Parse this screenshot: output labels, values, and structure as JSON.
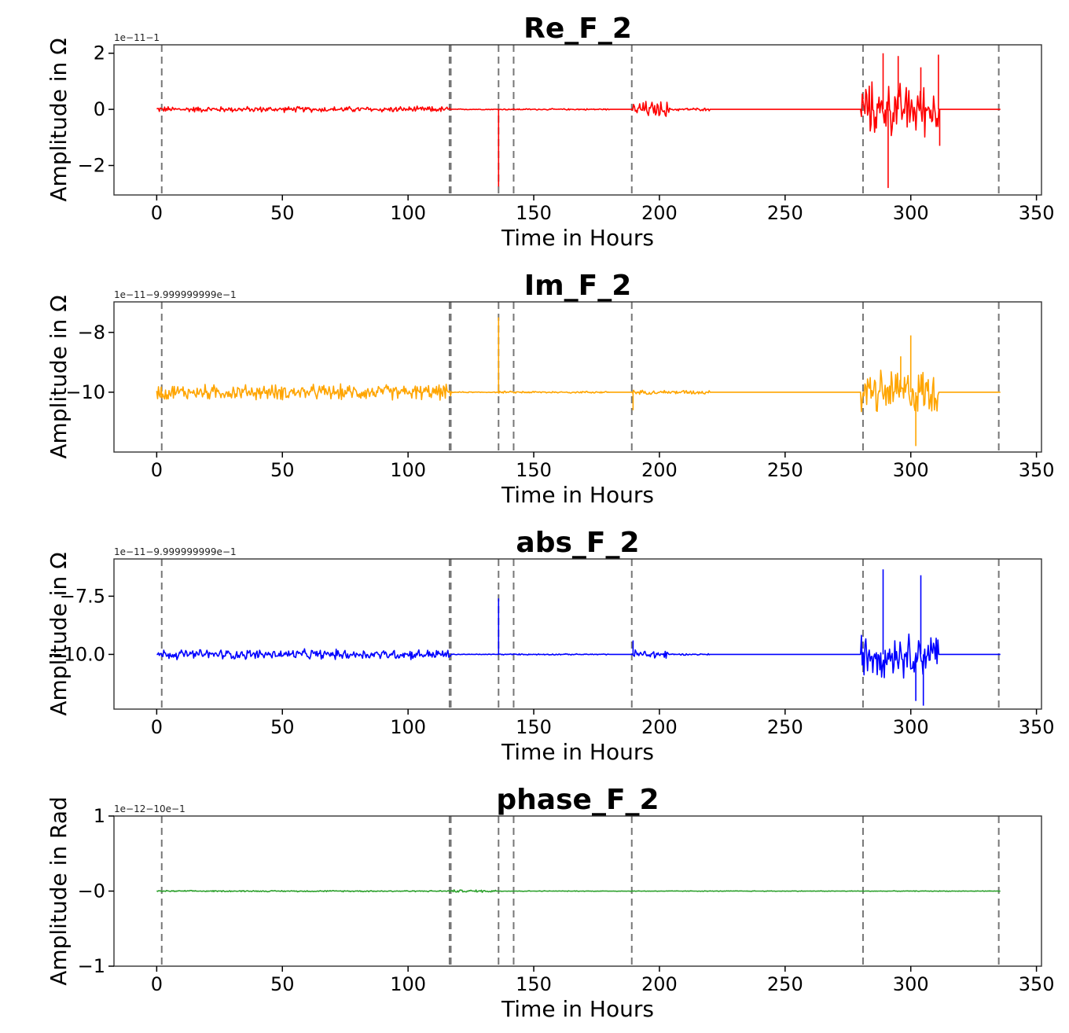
{
  "chart_data": [
    {
      "type": "line",
      "title": "Re_F_2",
      "xlabel": "Time in Hours",
      "ylabel": "Amplitude in Ω",
      "offset_text": "1e−11−1",
      "color": "#ff0000",
      "xlim": [
        -17,
        352
      ],
      "ylim": [
        -3.05,
        2.3
      ],
      "xticks": [
        0,
        50,
        100,
        150,
        200,
        250,
        300,
        350
      ],
      "xtick_labels": [
        "0",
        "50",
        "100",
        "150",
        "200",
        "250",
        "300",
        "350"
      ],
      "yticks": [
        2,
        0,
        -2
      ],
      "ytick_labels": [
        "2",
        "0",
        "−2"
      ],
      "vlines": [
        2,
        116.5,
        117,
        136,
        142,
        189,
        281,
        335
      ],
      "baseline": 0,
      "x_range": [
        0,
        336
      ],
      "noise": [
        {
          "x0": 0,
          "x1": 117,
          "amp": 0.12
        },
        {
          "x0": 117,
          "x1": 135,
          "amp": 0.02
        },
        {
          "x0": 136,
          "x1": 180,
          "amp": 0.03
        },
        {
          "x0": 189,
          "x1": 204,
          "amp": 0.35
        },
        {
          "x0": 204,
          "x1": 220,
          "amp": 0.06
        },
        {
          "x0": 280,
          "x1": 311,
          "amp": 1.1
        }
      ],
      "spikes": [
        {
          "x": 136,
          "y": -2.75
        },
        {
          "x": 289,
          "y": 2.0
        },
        {
          "x": 291,
          "y": -2.8
        },
        {
          "x": 295,
          "y": 1.9
        },
        {
          "x": 304,
          "y": 1.5
        },
        {
          "x": 311,
          "y": 1.95
        },
        {
          "x": 311.5,
          "y": -1.3
        }
      ]
    },
    {
      "type": "line",
      "title": "Im_F_2",
      "xlabel": "Time in Hours",
      "ylabel": "Amplitude in Ω",
      "offset_text": "1e−11−9.999999999e−1",
      "color": "#ffa500",
      "xlim": [
        -17,
        352
      ],
      "ylim": [
        -12.0,
        -6.98
      ],
      "xticks": [
        0,
        50,
        100,
        150,
        200,
        250,
        300,
        350
      ],
      "xtick_labels": [
        "0",
        "50",
        "100",
        "150",
        "200",
        "250",
        "300",
        "350"
      ],
      "yticks": [
        -8,
        -10
      ],
      "ytick_labels": [
        "−8",
        "−10"
      ],
      "vlines": [
        2,
        116.5,
        117,
        136,
        142,
        189,
        281,
        335
      ],
      "baseline": -10,
      "x_range": [
        0,
        336
      ],
      "noise": [
        {
          "x0": 0,
          "x1": 117,
          "amp": 0.3
        },
        {
          "x0": 117,
          "x1": 135,
          "amp": 0.02
        },
        {
          "x0": 136,
          "x1": 180,
          "amp": 0.04
        },
        {
          "x0": 189,
          "x1": 220,
          "amp": 0.08
        },
        {
          "x0": 280,
          "x1": 311,
          "amp": 0.9
        }
      ],
      "spikes": [
        {
          "x": 136,
          "y": -7.5
        },
        {
          "x": 189.5,
          "y": -10.6
        },
        {
          "x": 300,
          "y": -8.1
        },
        {
          "x": 302,
          "y": -11.8
        },
        {
          "x": 296,
          "y": -8.8
        }
      ]
    },
    {
      "type": "line",
      "title": "abs_F_2",
      "xlabel": "Time in Hours",
      "ylabel": "Amplitude in Ω",
      "offset_text": "1e−11−9.999999999e−1",
      "color": "#0000ff",
      "xlim": [
        -17,
        352
      ],
      "ylim": [
        -12.35,
        -5.9
      ],
      "xticks": [
        0,
        50,
        100,
        150,
        200,
        250,
        300,
        350
      ],
      "xtick_labels": [
        "0",
        "50",
        "100",
        "150",
        "200",
        "250",
        "300",
        "350"
      ],
      "yticks": [
        -7.5,
        -10.0
      ],
      "ytick_labels": [
        "−7.5",
        "−10.0"
      ],
      "vlines": [
        2,
        116.5,
        117,
        136,
        142,
        189,
        281,
        335
      ],
      "baseline": -10,
      "x_range": [
        0,
        336
      ],
      "noise": [
        {
          "x0": 0,
          "x1": 117,
          "amp": 0.25
        },
        {
          "x0": 117,
          "x1": 135,
          "amp": 0.02
        },
        {
          "x0": 136,
          "x1": 180,
          "amp": 0.03
        },
        {
          "x0": 189,
          "x1": 204,
          "amp": 0.25
        },
        {
          "x0": 204,
          "x1": 220,
          "amp": 0.04
        },
        {
          "x0": 280,
          "x1": 311,
          "amp": 1.1
        }
      ],
      "spikes": [
        {
          "x": 136,
          "y": -7.6
        },
        {
          "x": 189.5,
          "y": -9.4
        },
        {
          "x": 289,
          "y": -6.35
        },
        {
          "x": 304,
          "y": -6.6
        },
        {
          "x": 302,
          "y": -12.0
        },
        {
          "x": 305,
          "y": -12.2
        }
      ]
    },
    {
      "type": "line",
      "title": "phase_F_2",
      "xlabel": "Time in Hours",
      "ylabel": "Amplitude in Rad",
      "offset_text": "1e−12−10e−1",
      "color": "#2ca02c",
      "xlim": [
        -17,
        352
      ],
      "ylim": [
        -1.0,
        1.0
      ],
      "xticks": [
        0,
        50,
        100,
        150,
        200,
        250,
        300,
        350
      ],
      "xtick_labels": [
        "0",
        "50",
        "100",
        "150",
        "200",
        "250",
        "300",
        "350"
      ],
      "yticks": [
        1,
        0,
        -1
      ],
      "ytick_labels": [
        "1",
        "−0",
        "−1"
      ],
      "vlines": [
        2,
        116.5,
        117,
        136,
        142,
        189,
        281,
        335
      ],
      "baseline": 0,
      "x_range": [
        0,
        336
      ],
      "noise": [
        {
          "x0": 0,
          "x1": 117,
          "amp": 0.01
        },
        {
          "x0": 117,
          "x1": 135,
          "amp": 0.02
        },
        {
          "x0": 136,
          "x1": 336,
          "amp": 0.005
        }
      ],
      "spikes": []
    }
  ]
}
